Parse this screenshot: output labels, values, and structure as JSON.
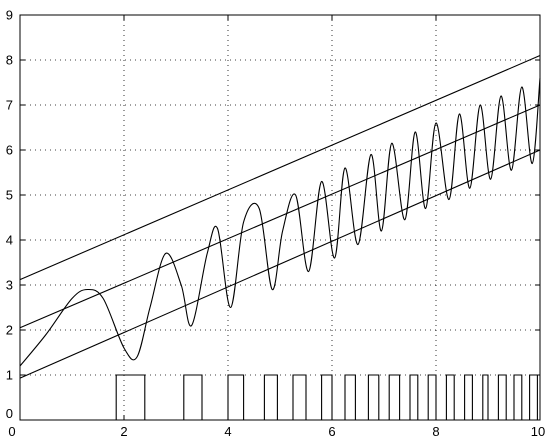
{
  "chart_data": {
    "type": "line",
    "title": "",
    "xlabel": "",
    "ylabel": "",
    "xlim": [
      0,
      10
    ],
    "ylim": [
      0,
      9
    ],
    "x_ticks": [
      "0",
      "2",
      "4",
      "6",
      "8",
      "10"
    ],
    "y_ticks": [
      "0",
      "1",
      "2",
      "3",
      "4",
      "5",
      "6",
      "7",
      "8",
      "9"
    ],
    "grid": true,
    "legend": "none",
    "series": [
      {
        "kind": "line",
        "x": [
          0,
          10
        ],
        "values": [
          3.12,
          8.1
        ]
      },
      {
        "kind": "line",
        "x": [
          0,
          10
        ],
        "values": [
          2.05,
          7.0
        ]
      },
      {
        "kind": "line",
        "x": [
          0,
          10
        ],
        "values": [
          0.93,
          6.0
        ]
      },
      {
        "kind": "line",
        "x": [
          0,
          0.5,
          1.0,
          1.3,
          1.6,
          2.0,
          2.25,
          2.5,
          2.8,
          3.1,
          3.3,
          3.6,
          3.8,
          4.05,
          4.3,
          4.6,
          4.85,
          5.05,
          5.3,
          5.55,
          5.8,
          6.05,
          6.25,
          6.5,
          6.75,
          6.95,
          7.15,
          7.4,
          7.6,
          7.8,
          8.0,
          8.25,
          8.45,
          8.65,
          8.85,
          9.05,
          9.25,
          9.45,
          9.65,
          9.85,
          10.0
        ],
        "values": [
          1.2,
          1.9,
          2.7,
          2.9,
          2.7,
          1.6,
          1.4,
          2.5,
          3.7,
          3.0,
          2.1,
          3.7,
          4.25,
          2.5,
          4.4,
          4.7,
          2.9,
          4.2,
          5.0,
          3.3,
          5.3,
          3.6,
          5.6,
          3.9,
          5.9,
          4.2,
          6.15,
          4.45,
          6.4,
          4.7,
          6.6,
          4.9,
          6.8,
          5.15,
          7.0,
          5.35,
          7.2,
          5.55,
          7.4,
          5.7,
          7.6
        ]
      },
      {
        "kind": "pulses",
        "baseline": 0,
        "level": 1,
        "intervals": [
          [
            1.85,
            2.4
          ],
          [
            3.15,
            3.5
          ],
          [
            4.0,
            4.3
          ],
          [
            4.7,
            4.95
          ],
          [
            5.25,
            5.5
          ],
          [
            5.8,
            6.0
          ],
          [
            6.25,
            6.45
          ],
          [
            6.7,
            6.9
          ],
          [
            7.1,
            7.3
          ],
          [
            7.5,
            7.65
          ],
          [
            7.85,
            8.0
          ],
          [
            8.2,
            8.35
          ],
          [
            8.55,
            8.7
          ],
          [
            8.9,
            9.0
          ],
          [
            9.2,
            9.35
          ],
          [
            9.5,
            9.65
          ],
          [
            9.8,
            9.95
          ]
        ]
      }
    ]
  }
}
